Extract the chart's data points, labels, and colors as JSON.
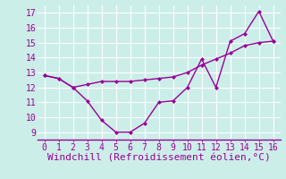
{
  "xlabel": "Windchill (Refroidissement éolien,°C)",
  "bg_color": "#cceee8",
  "grid_color": "#aaddcc",
  "line_color": "#990099",
  "xlim": [
    -0.5,
    16.5
  ],
  "ylim": [
    8.5,
    17.5
  ],
  "xticks": [
    0,
    1,
    2,
    3,
    4,
    5,
    6,
    7,
    8,
    9,
    10,
    11,
    12,
    13,
    14,
    15,
    16
  ],
  "yticks": [
    9,
    10,
    11,
    12,
    13,
    14,
    15,
    16,
    17
  ],
  "line1_x": [
    0,
    1,
    2,
    3,
    4,
    5,
    6,
    7,
    8,
    9,
    10,
    11,
    12,
    13,
    14,
    15,
    16
  ],
  "line1_y": [
    12.8,
    12.6,
    12.0,
    12.2,
    12.4,
    12.4,
    12.4,
    12.5,
    12.6,
    12.7,
    13.0,
    13.5,
    13.9,
    14.3,
    14.8,
    15.0,
    15.1
  ],
  "line2_x": [
    0,
    1,
    2,
    3,
    4,
    5,
    6,
    7,
    8,
    9,
    10,
    11,
    12,
    13,
    14,
    15,
    16
  ],
  "line2_y": [
    12.8,
    12.6,
    12.0,
    11.1,
    9.8,
    9.0,
    9.0,
    9.6,
    11.0,
    11.1,
    12.0,
    13.9,
    12.0,
    15.1,
    15.6,
    17.1,
    15.1
  ],
  "xlabel_fontsize": 8,
  "tick_fontsize": 7,
  "marker_size": 2.5,
  "linewidth": 1.0
}
